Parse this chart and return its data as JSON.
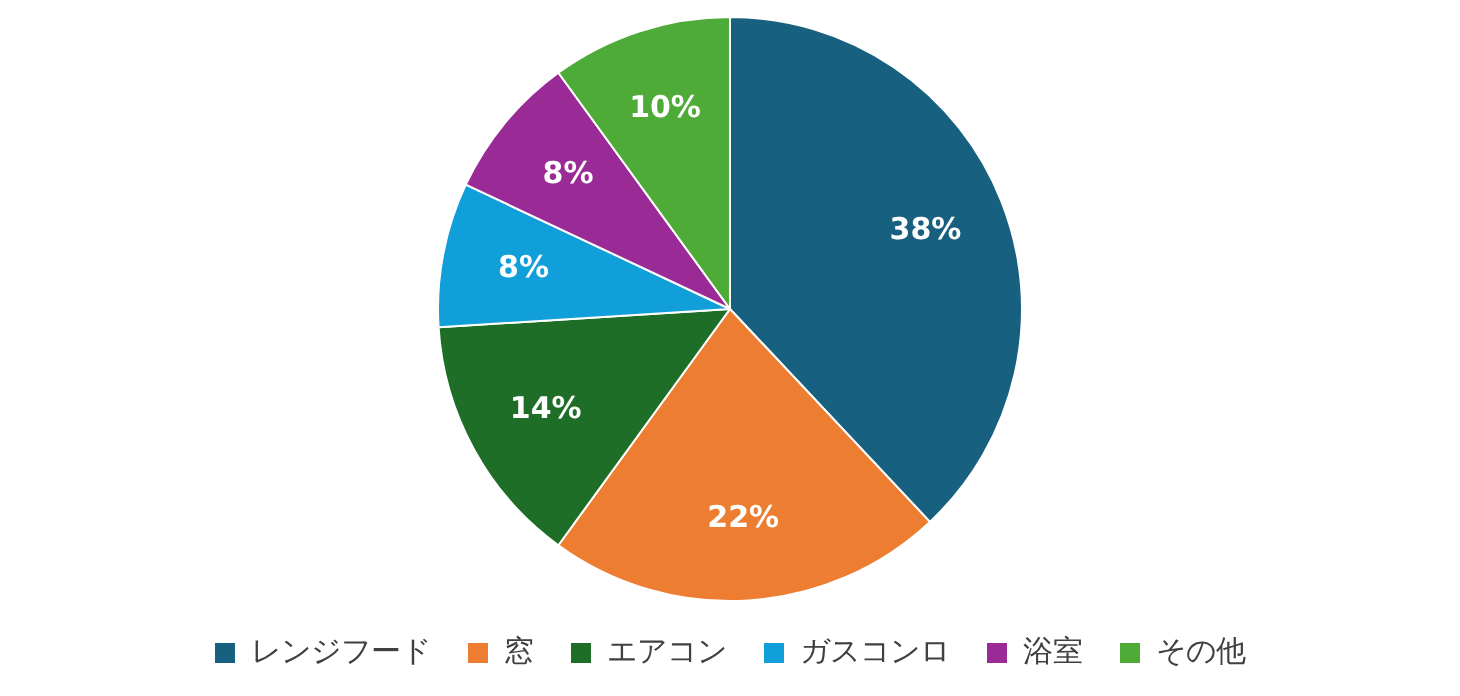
{
  "chart_data": {
    "type": "pie",
    "categories": [
      "レンジフード",
      "窓",
      "エアコン",
      "ガスコンロ",
      "浴室",
      "その他"
    ],
    "values": [
      38,
      22,
      14,
      8,
      8,
      10
    ],
    "colors": [
      "#17607f",
      "#ed7d31",
      "#1e6e28",
      "#109fd8",
      "#9a2a96",
      "#4fab38"
    ],
    "value_labels": [
      "38%",
      "22%",
      "14%",
      "8%",
      "8%",
      "10%"
    ],
    "legend": "bottom"
  }
}
